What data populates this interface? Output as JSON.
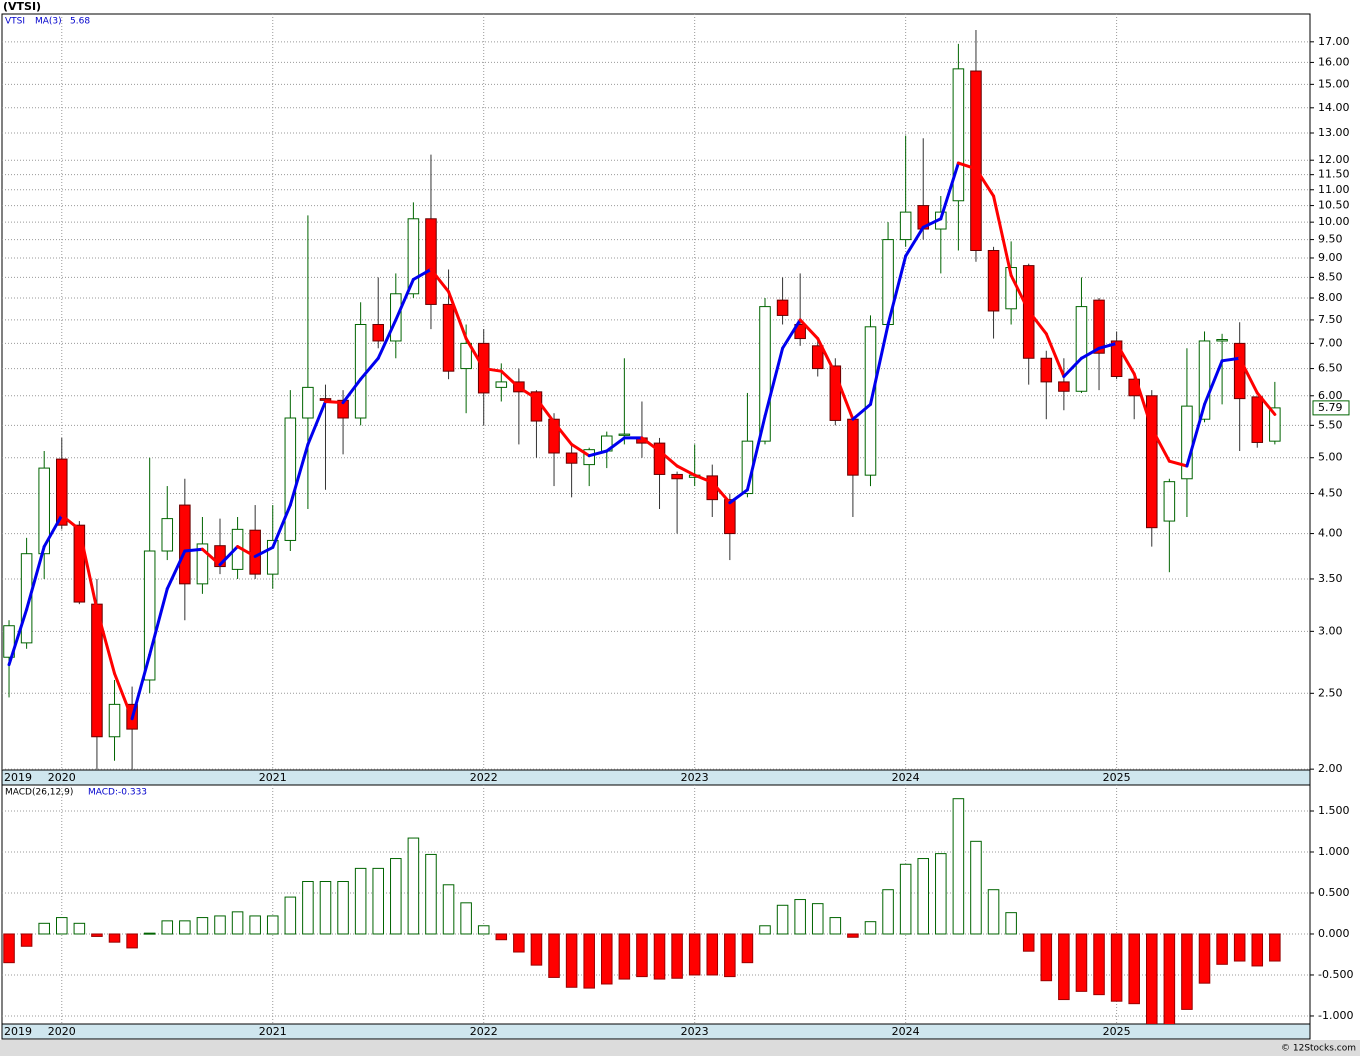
{
  "header": {
    "title": "(VTSI)",
    "copyright": "© 12Stocks.com"
  },
  "chart_data": [
    {
      "type": "candlestick",
      "symbol": "VTSI",
      "open": [
        2.78,
        2.9,
        3.77,
        4.98,
        4.1,
        3.25,
        2.2,
        2.42,
        2.6,
        3.8,
        4.35,
        3.45,
        3.86,
        3.6,
        4.04,
        3.55,
        3.92,
        5.62,
        5.95,
        5.92,
        5.62,
        7.4,
        7.05,
        8.1,
        10.1,
        7.85,
        6.5,
        7.0,
        6.15,
        6.25,
        6.07,
        5.6,
        5.07,
        4.9,
        5.1,
        5.34,
        5.3,
        5.22,
        4.76,
        4.72,
        4.74,
        4.42,
        4.5,
        5.25,
        7.95,
        7.4,
        6.95,
        6.55,
        5.6,
        4.75,
        7.4,
        9.5,
        10.5,
        9.8,
        10.65,
        15.6,
        9.2,
        7.75,
        8.8,
        6.7,
        6.25,
        6.08,
        7.95,
        7.05,
        6.3,
        6.0,
        4.15,
        4.7,
        5.6,
        7.05,
        7.0,
        5.98,
        5.25
      ],
      "high": [
        3.1,
        3.95,
        5.1,
        5.3,
        4.15,
        3.5,
        2.6,
        2.55,
        5.0,
        4.6,
        4.7,
        4.2,
        4.18,
        4.2,
        4.35,
        4.35,
        6.1,
        10.2,
        6.2,
        6.1,
        7.9,
        8.5,
        8.6,
        10.6,
        12.2,
        8.7,
        7.4,
        7.3,
        6.6,
        6.5,
        6.1,
        5.7,
        5.2,
        5.15,
        5.4,
        6.7,
        5.9,
        5.3,
        4.8,
        5.2,
        4.9,
        4.5,
        6.05,
        8.0,
        8.5,
        8.6,
        7.1,
        6.7,
        5.65,
        7.6,
        10.0,
        12.9,
        12.8,
        10.8,
        16.9,
        17.6,
        9.3,
        9.45,
        8.85,
        6.85,
        6.7,
        8.5,
        8.0,
        7.25,
        6.35,
        6.1,
        4.7,
        6.9,
        7.25,
        7.2,
        7.45,
        5.98,
        6.25
      ],
      "low": [
        2.47,
        2.85,
        3.5,
        4.05,
        3.25,
        2.0,
        2.05,
        2.0,
        2.5,
        3.7,
        3.1,
        3.35,
        3.55,
        3.5,
        3.5,
        3.4,
        3.8,
        4.3,
        4.55,
        5.05,
        5.5,
        6.9,
        6.7,
        8.0,
        7.3,
        6.3,
        5.7,
        5.5,
        5.9,
        5.2,
        5.0,
        4.6,
        4.45,
        4.6,
        4.85,
        5.2,
        5.0,
        4.3,
        4.0,
        4.6,
        4.2,
        3.7,
        4.45,
        5.2,
        7.4,
        6.95,
        6.35,
        5.5,
        4.2,
        4.6,
        7.35,
        9.3,
        9.5,
        8.6,
        9.2,
        8.9,
        7.1,
        7.4,
        6.2,
        5.6,
        5.75,
        6.05,
        6.1,
        6.3,
        5.6,
        3.85,
        3.57,
        4.2,
        5.55,
        5.85,
        5.1,
        5.15,
        5.2
      ],
      "close": [
        3.05,
        3.77,
        4.85,
        4.1,
        3.27,
        2.2,
        2.42,
        2.25,
        3.8,
        4.18,
        3.45,
        3.88,
        3.63,
        4.05,
        3.55,
        3.92,
        5.62,
        6.15,
        5.92,
        5.62,
        7.4,
        7.05,
        8.1,
        10.1,
        7.85,
        6.45,
        7.0,
        6.05,
        6.25,
        6.07,
        5.57,
        5.07,
        4.92,
        5.12,
        5.33,
        5.36,
        5.22,
        4.76,
        4.7,
        4.75,
        4.42,
        4.0,
        5.25,
        7.8,
        7.6,
        7.1,
        6.5,
        5.58,
        4.75,
        7.35,
        9.5,
        10.3,
        9.8,
        10.3,
        15.7,
        9.2,
        7.7,
        8.75,
        6.7,
        6.25,
        6.08,
        7.8,
        6.8,
        6.35,
        6.0,
        4.07,
        4.66,
        5.82,
        7.05,
        7.08,
        5.95,
        5.23,
        5.79
      ],
      "up_color": "#006400",
      "down_color": "#ff0000",
      "ma": {
        "name": "MA(3)",
        "last_label": 5.68,
        "up_color": "#0000ee",
        "down_color": "#ff0000",
        "values": [
          2.72,
          3.2,
          3.85,
          4.22,
          4.05,
          3.2,
          2.65,
          2.32,
          2.8,
          3.4,
          3.8,
          3.82,
          3.65,
          3.85,
          3.74,
          3.84,
          4.35,
          5.2,
          5.9,
          5.88,
          6.3,
          6.7,
          7.5,
          8.45,
          8.7,
          8.15,
          7.1,
          6.5,
          6.45,
          6.15,
          5.95,
          5.55,
          5.2,
          5.03,
          5.1,
          5.3,
          5.3,
          5.1,
          4.88,
          4.75,
          4.65,
          4.38,
          4.55,
          5.65,
          6.9,
          7.5,
          7.1,
          6.4,
          5.6,
          5.85,
          7.4,
          9.05,
          9.85,
          10.1,
          11.9,
          11.7,
          10.8,
          8.55,
          7.7,
          7.2,
          6.35,
          6.7,
          6.9,
          7.0,
          6.4,
          5.45,
          4.95,
          4.88,
          5.85,
          6.65,
          6.7,
          6.05,
          5.68
        ]
      },
      "last_price": 5.79,
      "log_scale": true,
      "grid": true,
      "xlim": [
        -0.4,
        74
      ],
      "xticks": [
        {
          "value": 0,
          "label": "2019"
        },
        {
          "value": 3,
          "label": "2020"
        },
        {
          "value": 15,
          "label": "2021"
        },
        {
          "value": 27,
          "label": "2022"
        },
        {
          "value": 39,
          "label": "2023"
        },
        {
          "value": 51,
          "label": "2024"
        },
        {
          "value": 63,
          "label": "2025"
        }
      ],
      "ylim": [
        1.995,
        18.45
      ],
      "yticks": [
        {
          "value": 2,
          "label": "2.00"
        },
        {
          "value": 2.5,
          "label": "2.50"
        },
        {
          "value": 3,
          "label": "3.00"
        },
        {
          "value": 3.5,
          "label": "3.50"
        },
        {
          "value": 4,
          "label": "4.00"
        },
        {
          "value": 4.5,
          "label": "4.50"
        },
        {
          "value": 5,
          "label": "5.00"
        },
        {
          "value": 5.5,
          "label": "5.50"
        },
        {
          "value": 6,
          "label": "6.00"
        },
        {
          "value": 6.5,
          "label": "6.50"
        },
        {
          "value": 7,
          "label": "7.00"
        },
        {
          "value": 7.5,
          "label": "7.50"
        },
        {
          "value": 8,
          "label": "8.00"
        },
        {
          "value": 8.5,
          "label": "8.50"
        },
        {
          "value": 9,
          "label": "9.00"
        },
        {
          "value": 9.5,
          "label": "9.50"
        },
        {
          "value": 10,
          "label": "10.00"
        },
        {
          "value": 10.5,
          "label": "10.50"
        },
        {
          "value": 11,
          "label": "11.00"
        },
        {
          "value": 11.5,
          "label": "11.50"
        },
        {
          "value": 12,
          "label": "12.00"
        },
        {
          "value": 13,
          "label": "13.00"
        },
        {
          "value": 14,
          "label": "14.00"
        },
        {
          "value": 15,
          "label": "15.00"
        },
        {
          "value": 16,
          "label": "16.00"
        },
        {
          "value": 17,
          "label": "17.00"
        }
      ]
    },
    {
      "type": "bar",
      "name": "MACD(26,12,9)",
      "label": "MACD:-0.333",
      "up_color": "#006400",
      "down_color": "#ff0000",
      "values": [
        -0.35,
        -0.15,
        0.13,
        0.2,
        0.13,
        -0.03,
        -0.1,
        -0.17,
        0.01,
        0.16,
        0.16,
        0.2,
        0.22,
        0.27,
        0.22,
        0.22,
        0.45,
        0.64,
        0.64,
        0.64,
        0.8,
        0.8,
        0.92,
        1.17,
        0.97,
        0.6,
        0.38,
        0.1,
        -0.07,
        -0.22,
        -0.38,
        -0.53,
        -0.65,
        -0.66,
        -0.61,
        -0.55,
        -0.52,
        -0.55,
        -0.54,
        -0.5,
        -0.5,
        -0.52,
        -0.35,
        0.1,
        0.35,
        0.42,
        0.37,
        0.2,
        -0.04,
        0.15,
        0.54,
        0.85,
        0.92,
        0.98,
        1.65,
        1.13,
        0.54,
        0.26,
        -0.21,
        -0.57,
        -0.8,
        -0.7,
        -0.74,
        -0.82,
        -0.85,
        -1.1,
        -1.12,
        -0.92,
        -0.6,
        -0.37,
        -0.33,
        -0.39,
        -0.33
      ],
      "grid": true,
      "xlim": [
        -0.4,
        74
      ],
      "xticks": [
        {
          "value": 0,
          "label": "2019"
        },
        {
          "value": 3,
          "label": "2020"
        },
        {
          "value": 15,
          "label": "2021"
        },
        {
          "value": 27,
          "label": "2022"
        },
        {
          "value": 39,
          "label": "2023"
        },
        {
          "value": 51,
          "label": "2024"
        },
        {
          "value": 63,
          "label": "2025"
        }
      ],
      "ylim": [
        -1.098,
        1.817
      ],
      "yticks": [
        {
          "value": 1.5,
          "label": "1.500"
        },
        {
          "value": 1,
          "label": "1.000"
        },
        {
          "value": 0.5,
          "label": "0.500"
        },
        {
          "value": 0,
          "label": "0.000"
        },
        {
          "value": -0.5,
          "label": "-0.500"
        },
        {
          "value": -1,
          "label": "-1.000"
        }
      ]
    }
  ]
}
